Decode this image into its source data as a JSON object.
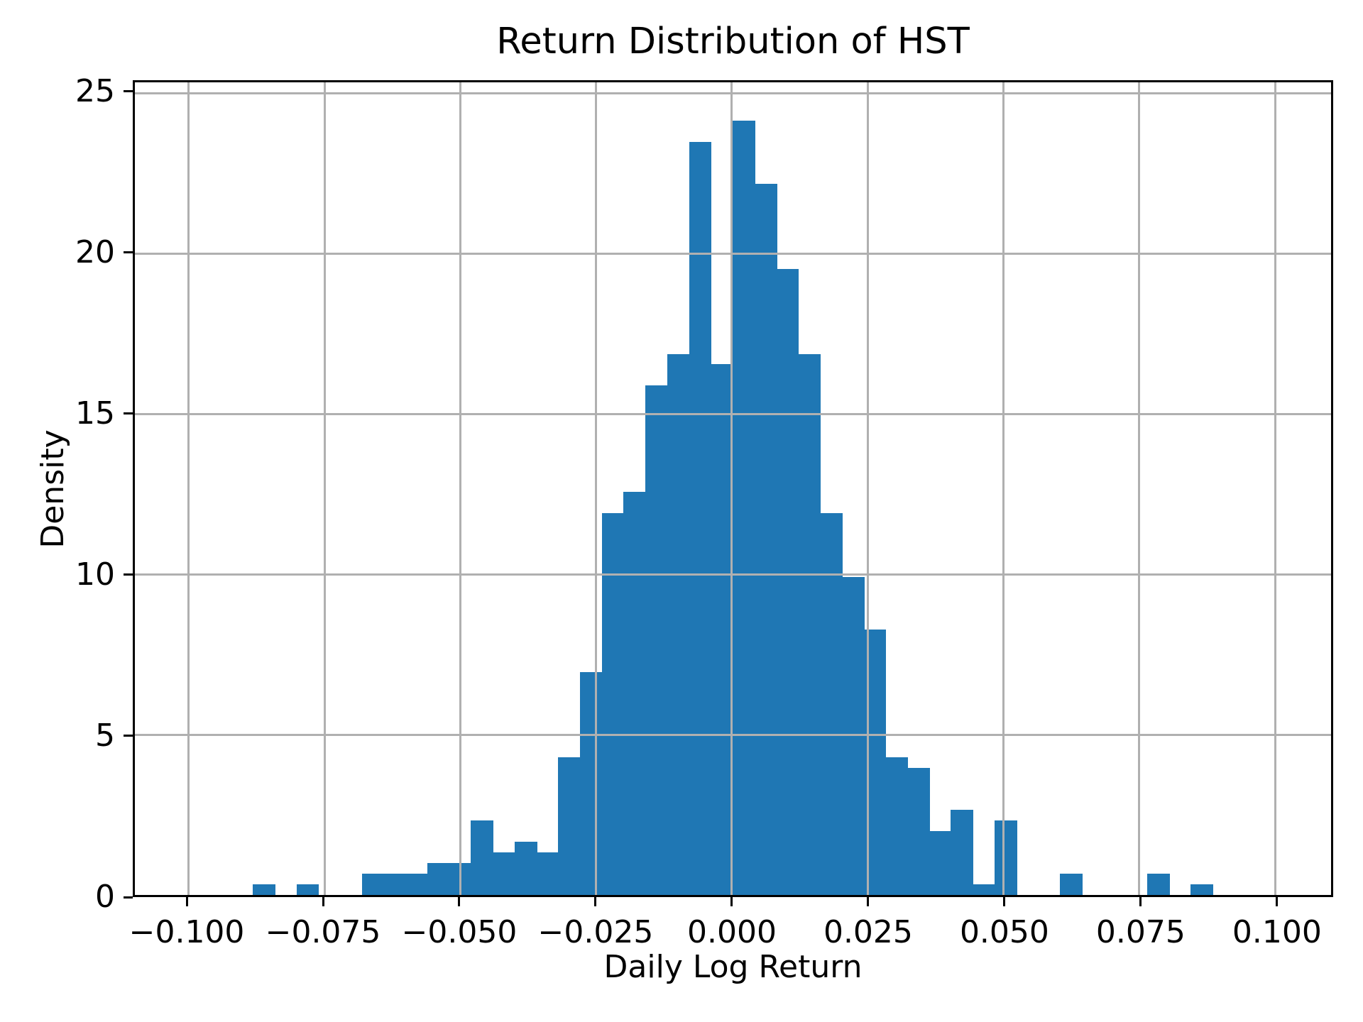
{
  "chart_data": {
    "type": "bar",
    "subtype": "histogram",
    "title": "Return Distribution of HST",
    "xlabel": "Daily Log Return",
    "ylabel": "Density",
    "grid": true,
    "legend": "none",
    "bar_color": "#1f77b4",
    "grid_color": "#b0b0b0",
    "axis_color": "#000000",
    "background_color": "#ffffff",
    "xlim": [
      -0.1099,
      0.1103
    ],
    "ylim": [
      0,
      25.35
    ],
    "bin_start": -0.0882,
    "bin_width": 0.004016,
    "heights": [
      0.33,
      0,
      0.33,
      0,
      0,
      0.66,
      0.66,
      0.66,
      0.99,
      0.99,
      2.32,
      1.32,
      1.66,
      1.32,
      4.3,
      6.95,
      11.92,
      12.58,
      15.89,
      16.88,
      23.5,
      16.55,
      24.16,
      22.18,
      19.53,
      16.88,
      11.92,
      9.93,
      8.28,
      4.3,
      3.97,
      1.99,
      2.65,
      0.33,
      2.32,
      0,
      0,
      0.66,
      0,
      0,
      0,
      0.66,
      0,
      0.33
    ],
    "x_tick_values": [
      -0.1,
      -0.075,
      -0.05,
      -0.025,
      0.0,
      0.025,
      0.05,
      0.075,
      0.1
    ],
    "x_tick_labels": [
      "−0.100",
      "−0.075",
      "−0.050",
      "−0.025",
      "0.000",
      "0.025",
      "0.050",
      "0.075",
      "0.100"
    ],
    "y_tick_values": [
      0,
      5,
      10,
      15,
      20,
      25
    ],
    "y_tick_labels": [
      "0",
      "5",
      "10",
      "15",
      "20",
      "25"
    ]
  }
}
